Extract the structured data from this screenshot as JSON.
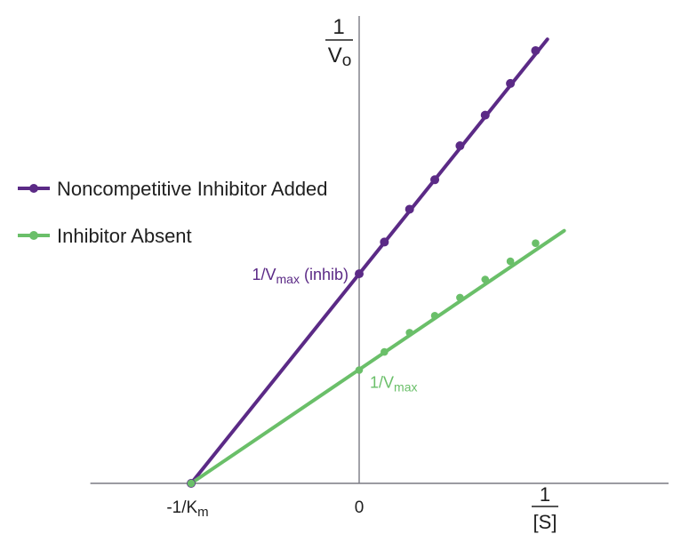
{
  "chart_data": {
    "type": "line",
    "title": "",
    "xlabel": {
      "numerator": "1",
      "denominator": "[S]"
    },
    "ylabel": {
      "numerator": "1",
      "denominator_main": "V",
      "denominator_sub": "o"
    },
    "xlim": [
      -1.6,
      1.85
    ],
    "ylim": [
      0,
      4.05
    ],
    "grid": false,
    "legend_position": "left",
    "x_tick_labels": [
      {
        "x": -1,
        "main": "-1/K",
        "sub": "m"
      },
      {
        "x": 0,
        "main": "0",
        "sub": ""
      }
    ],
    "annotations": [
      {
        "series": 0,
        "x": 0,
        "y": 1.85,
        "main": "1/V",
        "sub": "max",
        "suffix": " (inhib)"
      },
      {
        "series": 1,
        "x": 0,
        "y": 1.0,
        "main": "1/V",
        "sub": "max",
        "suffix": ""
      }
    ],
    "series": [
      {
        "name": "Noncompetitive Inhibitor Added",
        "color": "#5b2a86",
        "line_x": [
          -1,
          1.12
        ],
        "line_y": [
          0,
          3.92
        ],
        "x": [
          -1,
          0,
          0.15,
          0.3,
          0.45,
          0.6,
          0.75,
          0.9,
          1.05
        ],
        "y": [
          0,
          1.85,
          2.13,
          2.42,
          2.68,
          2.98,
          3.25,
          3.53,
          3.82
        ]
      },
      {
        "name": "Inhibitor Absent",
        "color": "#6abf69",
        "line_x": [
          -1,
          1.22
        ],
        "line_y": [
          0,
          2.23
        ],
        "x": [
          -1,
          0,
          0.15,
          0.3,
          0.45,
          0.6,
          0.75,
          0.9,
          1.05
        ],
        "y": [
          0,
          1.0,
          1.16,
          1.33,
          1.48,
          1.64,
          1.8,
          1.96,
          2.12
        ]
      }
    ]
  }
}
